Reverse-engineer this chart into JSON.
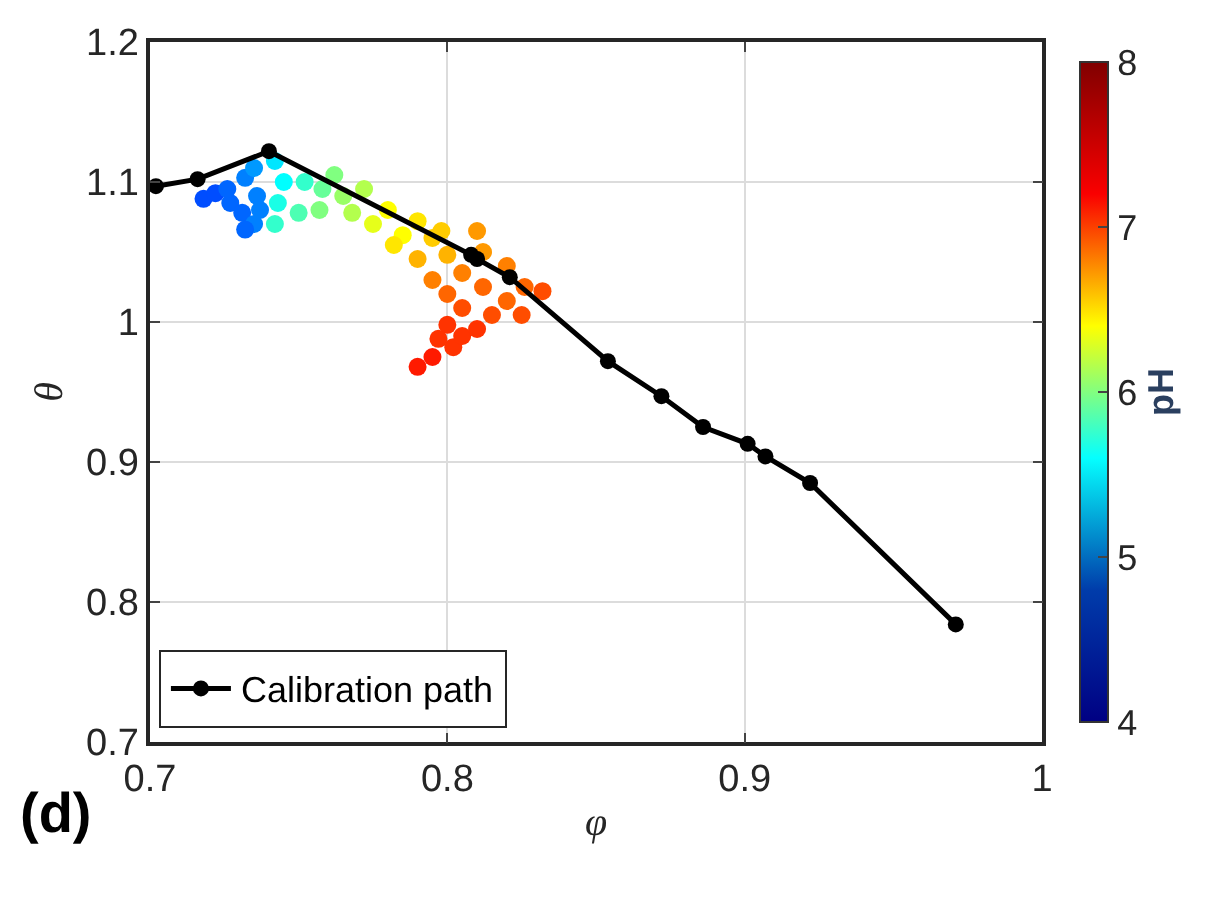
{
  "chart_data": {
    "type": "scatter",
    "xlabel": "φ",
    "ylabel": "θ",
    "clabel": "pH",
    "xlim": [
      0.7,
      1
    ],
    "xticks": [
      0.7,
      0.8,
      0.9,
      1
    ],
    "ylim": [
      0.7,
      1.2
    ],
    "yticks": [
      0.7,
      0.8,
      0.9,
      1,
      1.1,
      1.2
    ],
    "clim": [
      4,
      8
    ],
    "cticks": [
      4,
      5,
      6,
      7,
      8
    ],
    "grid": true,
    "legend": "bottom left",
    "annotations": [
      "(d)"
    ],
    "series": [
      {
        "marker": "circle",
        "x": [
          0.718,
          0.722,
          0.727,
          0.731,
          0.735,
          0.732,
          0.726,
          0.732,
          0.736,
          0.737,
          0.735,
          0.742,
          0.745,
          0.743,
          0.742,
          0.75,
          0.752,
          0.758,
          0.762,
          0.757,
          0.765,
          0.768,
          0.772,
          0.775,
          0.78,
          0.785,
          0.79,
          0.782,
          0.795,
          0.8,
          0.798,
          0.79,
          0.81,
          0.795,
          0.805,
          0.812,
          0.82,
          0.826,
          0.832,
          0.815,
          0.805,
          0.8,
          0.82,
          0.812,
          0.8,
          0.797,
          0.802,
          0.795,
          0.79,
          0.805,
          0.81,
          0.825
        ],
        "values": [
          1.088,
          1.092,
          1.085,
          1.078,
          1.07,
          1.066,
          1.095,
          1.103,
          1.09,
          1.08,
          1.11,
          1.115,
          1.1,
          1.085,
          1.07,
          1.078,
          1.1,
          1.095,
          1.105,
          1.08,
          1.09,
          1.078,
          1.095,
          1.07,
          1.08,
          1.062,
          1.072,
          1.055,
          1.06,
          1.048,
          1.065,
          1.045,
          1.065,
          1.03,
          1.035,
          1.025,
          1.015,
          1.025,
          1.022,
          1.005,
          1.01,
          1.02,
          1.04,
          1.05,
          0.998,
          0.988,
          0.982,
          0.975,
          0.968,
          0.99,
          0.995,
          1.005
        ],
        "colors": [
          "#004dff",
          "#004dff",
          "#0066ff",
          "#0066ff",
          "#0080ff",
          "#0066ff",
          "#0066ff",
          "#0080ff",
          "#0080ff",
          "#0080ff",
          "#0099ff",
          "#00e6ff",
          "#00ffff",
          "#1affe6",
          "#33ffcc",
          "#4dffb3",
          "#33ffcc",
          "#66ff99",
          "#80ff80",
          "#80ff80",
          "#99ff66",
          "#b3ff4d",
          "#b3ff4d",
          "#e6ff1a",
          "#ffff00",
          "#ffff00",
          "#ffe600",
          "#ffe600",
          "#ffcc00",
          "#ffb300",
          "#ffcc00",
          "#ffb300",
          "#ff9900",
          "#ff8000",
          "#ff8000",
          "#ff6600",
          "#ff6600",
          "#ff6600",
          "#ff4d00",
          "#ff4d00",
          "#ff4d00",
          "#ff6600",
          "#ff8000",
          "#ff9900",
          "#ff3300",
          "#ff3300",
          "#ff3300",
          "#ff1a00",
          "#ff1a00",
          "#ff3300",
          "#ff3300",
          "#ff4d00"
        ]
      },
      {
        "type": "line",
        "name": "Calibration path",
        "color": "#000000",
        "marker": "circle",
        "line_style": "solid",
        "x": [
          0.702,
          0.716,
          0.74,
          0.808,
          0.81,
          0.821,
          0.854,
          0.872,
          0.886,
          0.901,
          0.907,
          0.922,
          0.971
        ],
        "values": [
          1.097,
          1.102,
          1.122,
          1.048,
          1.045,
          1.032,
          0.972,
          0.947,
          0.925,
          0.913,
          0.904,
          0.885,
          0.784
        ]
      }
    ]
  }
}
